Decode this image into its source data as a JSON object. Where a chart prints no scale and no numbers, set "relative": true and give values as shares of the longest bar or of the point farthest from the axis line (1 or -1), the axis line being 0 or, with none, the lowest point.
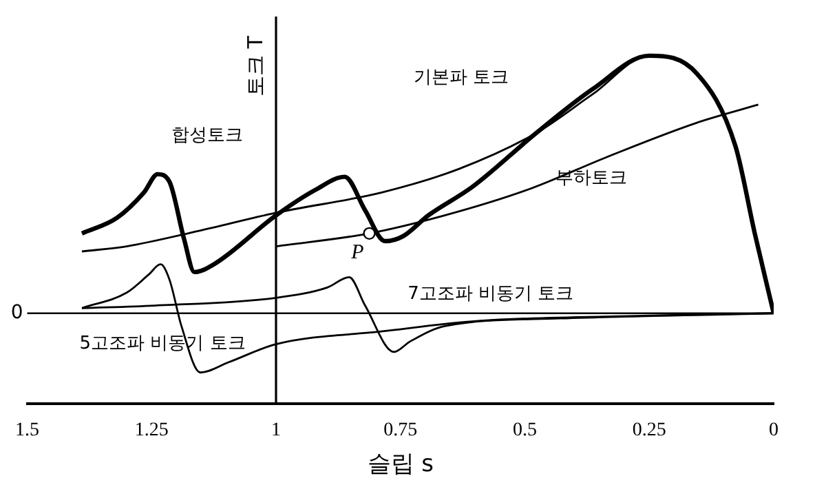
{
  "chart_data": {
    "type": "line",
    "relative": true,
    "xlabel": "슬립 s",
    "ylabel": "토크 T",
    "xlim": [
      1.5,
      0
    ],
    "xticks": [
      1.5,
      1.25,
      1,
      0.75,
      0.5,
      0.25,
      0
    ],
    "grid": false,
    "legend": false,
    "marker": "none",
    "line_style": "solid",
    "series": [
      {
        "name": "기본파 토크",
        "color": "#000000",
        "x": [
          1.39,
          1.3,
          1.155,
          1.0,
          0.786,
          0.633,
          0.477,
          0.364,
          0.25,
          0.154,
          0.077,
          0.038,
          0
        ],
        "values": [
          0.24,
          0.26,
          0.32,
          0.39,
          0.47,
          0.56,
          0.7,
          0.85,
          1.0,
          0.93,
          0.65,
          0.31,
          0
        ]
      },
      {
        "name": "합성토크",
        "color": "#000000",
        "x": [
          1.39,
          1.32,
          1.265,
          1.238,
          1.214,
          1.185,
          1.164,
          1.125,
          1.0,
          0.92,
          0.862,
          0.821,
          0.781,
          0.744,
          0.694,
          0.606,
          0.477,
          0.364,
          0.25,
          0.154,
          0.077,
          0.038,
          0
        ],
        "values": [
          0.31,
          0.37,
          0.47,
          0.54,
          0.51,
          0.29,
          0.16,
          0.19,
          0.38,
          0.48,
          0.53,
          0.4,
          0.28,
          0.3,
          0.38,
          0.49,
          0.7,
          0.87,
          1.0,
          0.93,
          0.65,
          0.31,
          0
        ]
      },
      {
        "name": "부하토크",
        "color": "#000000",
        "x": [
          1.0,
          0.8125,
          0.661,
          0.494,
          0.331,
          0.154,
          0.031
        ],
        "values": [
          0.26,
          0.31,
          0.38,
          0.48,
          0.61,
          0.74,
          0.81
        ]
      },
      {
        "name": "7고조파 비동기 토크",
        "color": "#000000",
        "x": [
          1.39,
          1.244,
          1.0,
          0.897,
          0.853,
          0.821,
          0.763,
          0.731,
          0.661,
          0.429,
          0
        ],
        "values": [
          0.02,
          0.03,
          0.06,
          0.1,
          0.14,
          0.03,
          -0.15,
          -0.11,
          -0.05,
          -0.02,
          0
        ]
      },
      {
        "name": "5고조파 비동기 토크",
        "color": "#000000",
        "x": [
          1.39,
          1.3,
          1.256,
          1.232,
          1.214,
          1.19,
          1.152,
          1.095,
          1.0,
          0.786,
          0.594,
          0.266,
          0
        ],
        "values": [
          0.02,
          0.08,
          0.15,
          0.19,
          0.13,
          -0.05,
          -0.23,
          -0.19,
          -0.12,
          -0.07,
          -0.03,
          -0.01,
          0
        ]
      }
    ],
    "ref_lines": [
      {
        "axis": "y",
        "value": 0,
        "label": "0"
      },
      {
        "axis": "x",
        "value": 1,
        "label": null
      }
    ],
    "annotations": [
      {
        "text": "P",
        "x": 0.8125,
        "y": 0.31
      }
    ]
  }
}
